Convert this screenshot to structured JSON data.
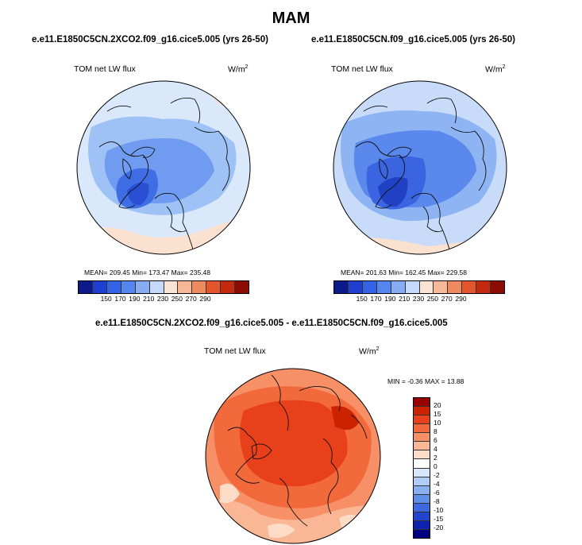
{
  "season": "MAM",
  "panels": [
    {
      "case": "e.e11.E1850C5CN.2XCO2.f09_g16.cice5.005 (yrs 26-50)",
      "variable": "TOM net LW flux",
      "units": "W/m",
      "units_sup": "2",
      "stats": "MEAN= 209.45  Min= 173.47  Max= 235.48"
    },
    {
      "case": "e.e11.E1850C5CN.f09_g16.cice5.005 (yrs 26-50)",
      "variable": "TOM net LW flux",
      "units": "W/m",
      "units_sup": "2",
      "stats": "MEAN= 201.63  Min= 162.45  Max= 229.58"
    }
  ],
  "colorbar_top": {
    "colors": [
      "#0d1a8c",
      "#1f3fd0",
      "#3563e6",
      "#5586ef",
      "#86acf4",
      "#c5dafa",
      "#fbe4d5",
      "#f6b896",
      "#ef8a5e",
      "#e2552d",
      "#c42a10",
      "#8c0c00"
    ],
    "labels": [
      "150",
      "170",
      "190",
      "210",
      "230",
      "250",
      "270",
      "290"
    ]
  },
  "difference": {
    "title": "e.e11.E1850C5CN.2XCO2.f09_g16.cice5.005 - e.e11.E1850C5CN.f09_g16.cice5.005",
    "variable": "TOM net LW flux",
    "units": "W/m",
    "units_sup": "2",
    "stats": "MIN =  -0.36 MAX =  13.88"
  },
  "colorbar_diff": {
    "colors": [
      "#990000",
      "#cc2200",
      "#e8401a",
      "#f26a3c",
      "#f79066",
      "#fab796",
      "#fcdcc7",
      "#ffffff",
      "#d8e6fb",
      "#b0cdf6",
      "#88b0f0",
      "#5f8ee8",
      "#3c69df",
      "#2244cf",
      "#0e22b0",
      "#000080"
    ],
    "labels": [
      "20",
      "15",
      "10",
      "8",
      "6",
      "4",
      "2",
      "0",
      "-2",
      "-4",
      "-6",
      "-8",
      "-10",
      "-15",
      "-20"
    ]
  }
}
